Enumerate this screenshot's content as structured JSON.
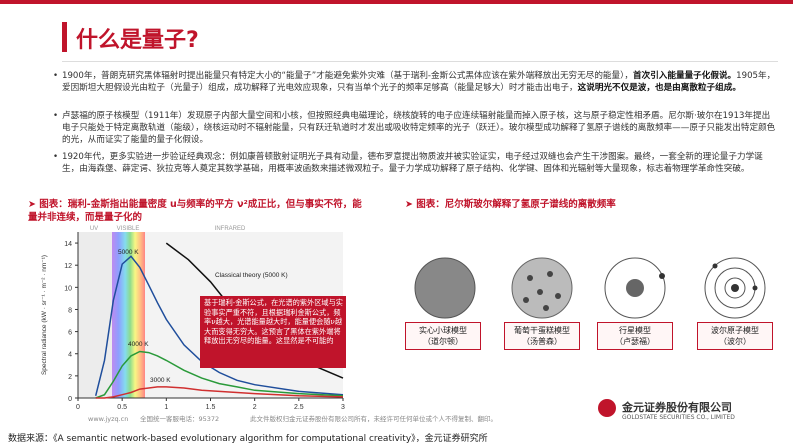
{
  "header": {
    "title": "什么是量子?"
  },
  "paragraphs": [
    [
      "1900年，普朗克研究黑体辐射时提出能量只有特定大小的“能量子”才能避免紫外灾难（基于瑞利-金斯公式黑体应该在紫外端释放出无穷无尽的能量），",
      "首次引入能量量子化假说。",
      "1905年，爱因斯坦大胆假设光由粒子（光量子）组成，成功解释了光电效应现象，只有当单个光子的频率足够高（能量足够大）时才能击出电子，",
      "这说明光不仅是波，也是由离散粒子组成。"
    ],
    [
      "卢瑟福的原子核模型（1911年）发现原子内部大量空间和小核，但按照经典电磁理论，绕核旋转的电子应连续辐射能量而掉入原子核，这与原子稳定性相矛盾。尼尔斯·玻尔在1913年提出电子只能处于特定离散轨道（能级），绕核运动时不辐射能量，只有跃迁轨道时才发出或吸收特定频率的光子（跃迁）。玻尔模型成功解释了氢原子谱线的离散频率——原子只能发出特定颜色的光，从而证实了能量的量子化假设。"
    ],
    [
      "1920年代，更多实验进一步验证经典观念：例如康普顿散射证明光子具有动量，德布罗意提出物质波并被实验证实，电子经过双缝也会产生干涉图案。最终，一套全新的理论量子力学诞生，由海森堡、薛定谔、狄拉克等人奠定其数学基础，用概率波函数来描述微观粒子。量子力学成功解释了原子结构、化学键、固体和光辐射等大量现象，标志着物理学革命性突破。"
    ]
  ],
  "left_caption": "图表：瑞利-金斯指出能量密度 u与频率的平方 ν²成正比，但与事实不符，能量并非连续，而是量子化的",
  "right_caption": "图表：尼尔斯玻尔解释了氢原子谱线的离散频率",
  "plot_note": "基于瑞利-金斯公式，在光谱的紫外区域与实验事实严重不符，且根据瑞利金斯公式，频率ν越大，光谱能量越大时，能量便会随ν越大而变得无穷大。这预言了黑体在紫外端将释放出无穷尽的能量。这显然是不可能的",
  "models": [
    {
      "name": "实心小球模型",
      "author": "（道尔顿）"
    },
    {
      "name": "葡萄干蛋糕模型",
      "author": "（汤普森）"
    },
    {
      "name": "行星模型",
      "author": "（卢瑟福）"
    },
    {
      "name": "波尔原子模型",
      "author": "（波尔）"
    }
  ],
  "contact": [
    "www.jyzq.cn",
    "全国统一客服电话：95372",
    "此文件版权归金元证券股份有限公司所有，未经许可任何单位或个人不得复制、翻印。"
  ],
  "logo": {
    "name": "金元证券股份有限公司",
    "english": "GOLDSTATE SECURITIES CO., LIMITED"
  },
  "source": "数据来源：《A semantic network-based evolutionary algorithm for computational creativity》，金元证券研究所",
  "chart_data": {
    "type": "line",
    "y_label": "Spectral radiance (kW · sr⁻¹ · m⁻² · nm⁻¹)",
    "band_labels": [
      "UV",
      "VISIBLE",
      "INFRARED"
    ],
    "xlim": [
      0,
      3
    ],
    "xticks": [
      0,
      0.5,
      1,
      1.5,
      2,
      2.5,
      3
    ],
    "ylim": [
      0,
      15
    ],
    "yticks": [
      0,
      2,
      4,
      6,
      8,
      10,
      12,
      14
    ],
    "series": [
      {
        "name": "5000 K",
        "color": "#1f4e9c",
        "x": [
          0.2,
          0.3,
          0.4,
          0.5,
          0.6,
          0.7,
          0.8,
          0.9,
          1.0,
          1.2,
          1.4,
          1.6,
          1.8,
          2.0,
          2.5,
          3.0
        ],
        "values": [
          0.2,
          3.4,
          8.8,
          12.1,
          12.8,
          11.8,
          10.2,
          8.6,
          7.1,
          4.8,
          3.3,
          2.3,
          1.6,
          1.2,
          0.6,
          0.3
        ]
      },
      {
        "name": "4000 K",
        "color": "#2a9a3a",
        "x": [
          0.2,
          0.3,
          0.4,
          0.5,
          0.6,
          0.7,
          0.8,
          0.9,
          1.0,
          1.2,
          1.4,
          1.6,
          1.8,
          2.0,
          2.5,
          3.0
        ],
        "values": [
          0.0,
          0.3,
          1.5,
          2.9,
          3.8,
          4.2,
          4.1,
          3.8,
          3.4,
          2.5,
          1.8,
          1.3,
          1.0,
          0.7,
          0.4,
          0.2
        ]
      },
      {
        "name": "3000 K",
        "color": "#d03030",
        "x": [
          0.2,
          0.3,
          0.4,
          0.5,
          0.6,
          0.7,
          0.8,
          0.9,
          1.0,
          1.2,
          1.4,
          1.6,
          1.8,
          2.0,
          2.5,
          3.0
        ],
        "values": [
          0.0,
          0.0,
          0.1,
          0.3,
          0.5,
          0.8,
          0.9,
          1.0,
          1.0,
          0.9,
          0.7,
          0.6,
          0.5,
          0.4,
          0.2,
          0.1
        ]
      },
      {
        "name": "Classical theory (5000 K)",
        "color": "#111111",
        "x": [
          1.0,
          1.25,
          1.5,
          1.75,
          2.0,
          2.5,
          3.0
        ],
        "values": [
          14,
          12.5,
          10.5,
          8,
          6,
          3.5,
          1.8
        ]
      }
    ]
  }
}
